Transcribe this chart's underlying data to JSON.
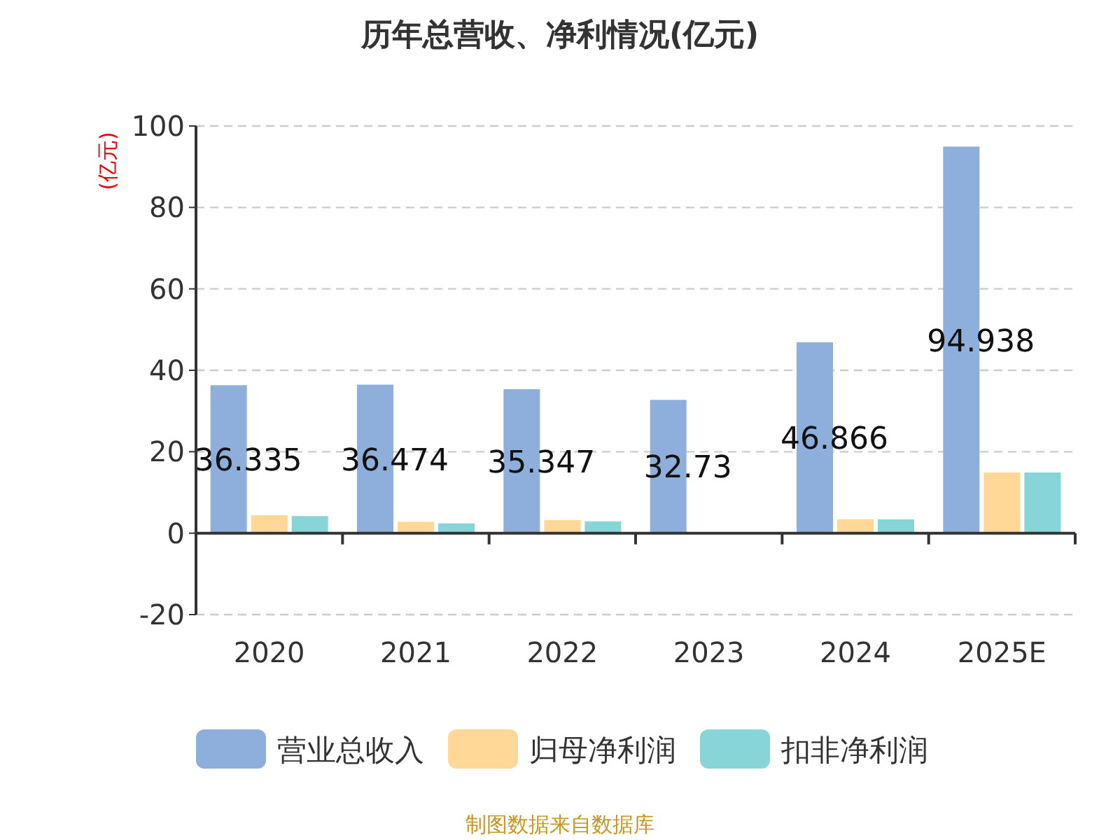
{
  "chart_data": {
    "type": "bar",
    "title": "历年总营收、净利情况(亿元)",
    "ylabel": "(亿元)",
    "categories": [
      "2020",
      "2021",
      "2022",
      "2023",
      "2024",
      "2025E"
    ],
    "series": [
      {
        "name": "营业总收入",
        "color": "#8eaedb",
        "values": [
          36.335,
          36.474,
          35.347,
          32.73,
          46.866,
          94.938
        ],
        "value_labels": [
          "36.335",
          "36.474",
          "35.347",
          "32.73",
          "46.866",
          "94.938"
        ]
      },
      {
        "name": "归母净利润",
        "color": "#ffd898",
        "values": [
          4.4,
          2.8,
          3.2,
          null,
          3.4,
          14.9
        ]
      },
      {
        "name": "扣非净利润",
        "color": "#88d5d8",
        "values": [
          4.2,
          2.4,
          2.9,
          null,
          3.4,
          14.9
        ]
      }
    ],
    "ylim": [
      -20,
      100
    ],
    "yticks": [
      -20,
      0,
      20,
      40,
      60,
      80,
      100
    ],
    "grid": "y",
    "legend": "bottom",
    "annotations": [
      "制图数据来自数据库"
    ]
  }
}
